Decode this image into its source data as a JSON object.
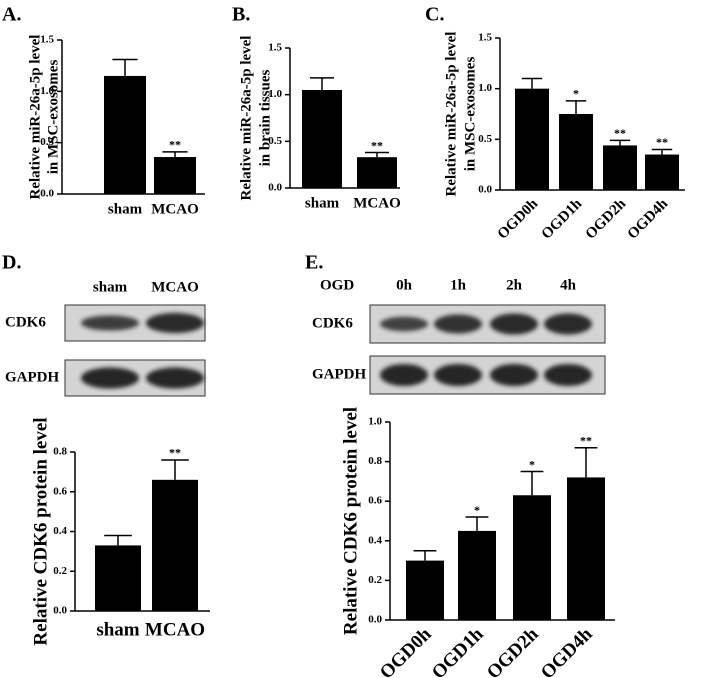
{
  "chart_data": [
    {
      "type": "bar",
      "panel": "A.",
      "ylabel": [
        "Relative miR-26a-5p level",
        "in MSC-exosomes"
      ],
      "categories": [
        "sham",
        "MCAO"
      ],
      "values": [
        1.15,
        0.36
      ],
      "errors": [
        0.16,
        0.05
      ],
      "significance": [
        null,
        "**"
      ],
      "color": "#000000",
      "ylim": [
        0,
        1.5
      ],
      "yticks": [
        {
          "value": 0,
          "label": "0.0"
        },
        0.5,
        {
          "value": 1,
          "label": "1.0"
        },
        1.5
      ]
    },
    {
      "type": "bar",
      "panel": "B.",
      "ylabel": [
        "Relative miR-26a-5p level",
        "in brain tissues"
      ],
      "categories": [
        "sham",
        "MCAO"
      ],
      "values": [
        1.05,
        0.33
      ],
      "errors": [
        0.13,
        0.05
      ],
      "significance": [
        null,
        "**"
      ],
      "color": "#000000",
      "ylim": [
        0,
        1.5
      ],
      "yticks": [
        {
          "value": 0,
          "label": "0.0"
        },
        0.5,
        {
          "value": 1,
          "label": "1.0"
        },
        1.5
      ]
    },
    {
      "type": "bar",
      "panel": "C.",
      "ylabel": [
        "Relative miR-26a-5p level",
        "in MSC-exosomes"
      ],
      "categories": [
        "OGD0h",
        "OGD1h",
        "OGD2h",
        "OGD4h"
      ],
      "values": [
        1.0,
        0.75,
        0.44,
        0.35
      ],
      "errors": [
        0.1,
        0.13,
        0.05,
        0.05
      ],
      "significance": [
        null,
        "*",
        "**",
        "**"
      ],
      "color": "#000000",
      "ylim": [
        0,
        1.5
      ],
      "yticks": [
        {
          "value": 0,
          "label": "0.0"
        },
        0.5,
        {
          "value": 1,
          "label": "1.0"
        },
        1.5
      ]
    },
    {
      "type": "bar",
      "panel": "D.",
      "ylabel": [
        "Relative CDK6 protein level"
      ],
      "blot": {
        "lanes": [
          "sham",
          "MCAO"
        ],
        "rows": [
          "CDK6",
          "GAPDH"
        ]
      },
      "categories": [
        "sham",
        "MCAO"
      ],
      "values": [
        0.33,
        0.66
      ],
      "errors": [
        0.05,
        0.1
      ],
      "significance": [
        null,
        "**"
      ],
      "color": "#000000",
      "ylim": [
        0,
        0.8
      ],
      "yticks": [
        {
          "value": 0,
          "label": "0.0"
        },
        0.2,
        0.4,
        0.6,
        0.8
      ]
    },
    {
      "type": "bar",
      "panel": "E.",
      "ylabel": [
        "Relative CDK6 protein level"
      ],
      "blot": {
        "header": "OGD",
        "lanes": [
          "0h",
          "1h",
          "2h",
          "4h"
        ],
        "rows": [
          "CDK6",
          "GAPDH"
        ]
      },
      "categories": [
        "OGD0h",
        "OGD1h",
        "OGD2h",
        "OGD4h"
      ],
      "values": [
        0.3,
        0.45,
        0.63,
        0.72
      ],
      "errors": [
        0.05,
        0.07,
        0.12,
        0.15
      ],
      "significance": [
        null,
        "*",
        "*",
        "**"
      ],
      "color": "#000000",
      "ylim": [
        0,
        1.0
      ],
      "yticks": [
        {
          "value": 0,
          "label": "0.0"
        },
        0.2,
        0.4,
        0.6,
        0.8,
        {
          "value": 1,
          "label": "1.0"
        }
      ]
    }
  ]
}
